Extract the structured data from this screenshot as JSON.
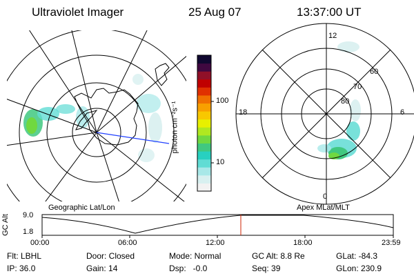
{
  "header": {
    "title": "Ultraviolet Imager",
    "date": "25 Aug 07",
    "time": "13:37:00 UT"
  },
  "left_panel": {
    "caption": "Geographic Lat/Lon"
  },
  "right_panel": {
    "caption": "Apex MLat/MLT",
    "mlt_labels": {
      "top": "12",
      "left": "18",
      "right": "6",
      "bottom": "0"
    },
    "lat_labels": [
      "60",
      "70",
      "80"
    ]
  },
  "colorbar": {
    "unit_label": "photon cm⁻²s⁻¹",
    "tick_labels": [
      "100",
      "10"
    ],
    "colors": [
      "#f2f2f2",
      "#d8f0f0",
      "#a8e8e8",
      "#60dcd4",
      "#28d0c0",
      "#40c880",
      "#70d840",
      "#b0e820",
      "#e8f000",
      "#f8c800",
      "#f8a000",
      "#f07000",
      "#e03000",
      "#c00000",
      "#901028",
      "#400840",
      "#100830"
    ]
  },
  "timeline": {
    "ylabel": "GC Alt",
    "y_ticks": [
      "9.0",
      "1.8"
    ],
    "x_ticks": [
      "00:00",
      "06:00",
      "12:00",
      "18:00",
      "23:59"
    ],
    "current_marker_color": "#cc2200"
  },
  "info": {
    "filter": "Flt: LBHL",
    "ip": "IP: 36.0",
    "door": "Door: Closed",
    "gain": "Gain: 14",
    "mode": "Mode: Normal",
    "dsp": "Dsp:   -0.0",
    "gc_alt": "GC Alt: 8.8 Re",
    "seq": "Seq: 39",
    "glat": "GLat: -84.3",
    "glon": "GLon: 230.9"
  }
}
